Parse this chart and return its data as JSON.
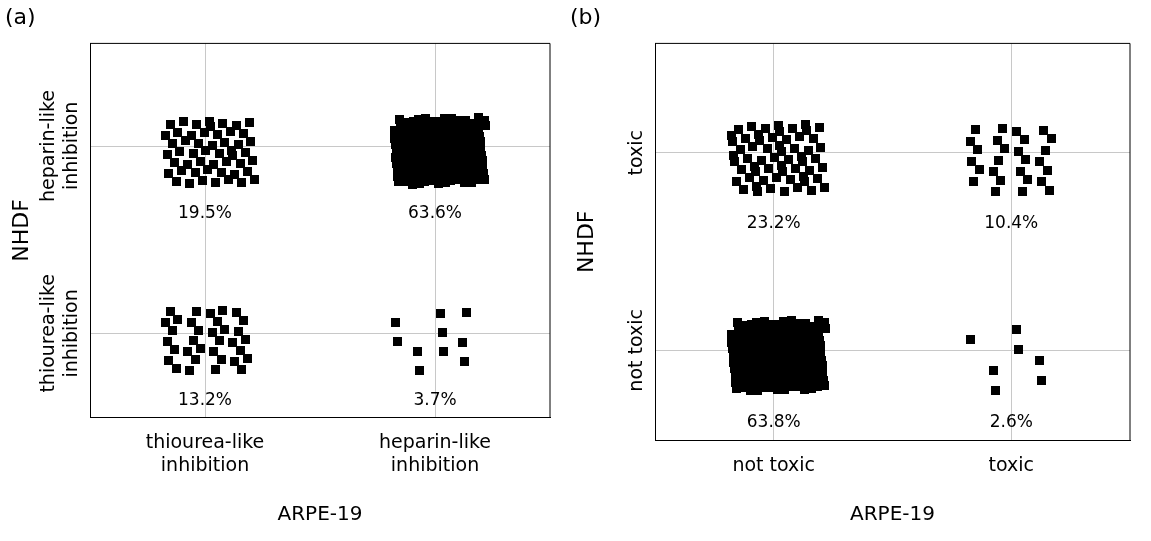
{
  "chart_data": [
    {
      "type": "heatmap",
      "title": "(a)",
      "xlabel": "ARPE-19",
      "ylabel": "NHDF",
      "categories": [
        "thiourea-like inhibition",
        "heparin-like inhibition"
      ],
      "y_categories": [
        "heparin-like inhibition",
        "thiourea-like inhibition"
      ],
      "cells": [
        [
          19.5,
          63.6
        ],
        [
          13.2,
          3.7
        ]
      ],
      "cell_labels": [
        [
          "19.5%",
          "63.6%"
        ],
        [
          "13.2%",
          "3.7%"
        ]
      ]
    },
    {
      "type": "heatmap",
      "title": "(b)",
      "xlabel": "ARPE-19",
      "ylabel": "NHDF",
      "categories": [
        "not toxic",
        "toxic"
      ],
      "y_categories": [
        "toxic",
        "not toxic"
      ],
      "cells": [
        [
          23.2,
          10.4
        ],
        [
          63.8,
          2.6
        ]
      ],
      "cell_labels": [
        [
          "23.2%",
          "10.4%"
        ],
        [
          "63.8%",
          "2.6%"
        ]
      ]
    }
  ]
}
